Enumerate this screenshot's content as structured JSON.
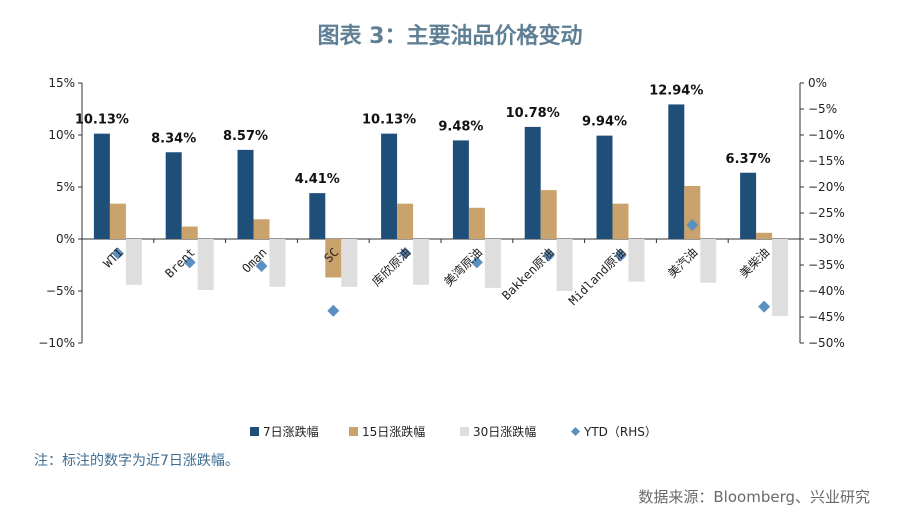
{
  "title": "图表 3：主要油品价格变动",
  "note": "注：标注的数字为近7日涨跌幅。",
  "source": "数据来源：Bloomberg、兴业研究",
  "chart_data": {
    "type": "bar",
    "categories": [
      "WTI",
      "Brent",
      "Oman",
      "SC",
      "库欣原油",
      "美湾原油",
      "Bakken原油",
      "Midland原油",
      "美汽油",
      "美柴油"
    ],
    "series": [
      {
        "name": "7日涨跌幅",
        "axis": "left",
        "kind": "bar",
        "color": "#1f4e79",
        "values": [
          10.13,
          8.34,
          8.57,
          4.41,
          10.13,
          9.48,
          10.78,
          9.94,
          12.94,
          6.37
        ]
      },
      {
        "name": "15日涨跌幅",
        "axis": "left",
        "kind": "bar",
        "color": "#c9a36b",
        "values": [
          3.4,
          1.2,
          1.9,
          -3.7,
          3.4,
          3.0,
          4.7,
          3.4,
          5.1,
          0.6
        ]
      },
      {
        "name": "30日涨跌幅",
        "axis": "left",
        "kind": "bar",
        "color": "#dedede",
        "values": [
          -4.4,
          -4.9,
          -4.6,
          -4.6,
          -4.4,
          -4.7,
          -5.0,
          -4.1,
          -4.2,
          -7.4
        ]
      },
      {
        "name": "YTD（RHS）",
        "axis": "right",
        "kind": "marker",
        "color": "#5b8fbf",
        "values": [
          -32.8,
          -34.5,
          -35.2,
          -43.8,
          -32.7,
          -34.5,
          -33.2,
          -33.2,
          -27.3,
          -43.0
        ]
      }
    ],
    "data_labels": [
      "10.13%",
      "8.34%",
      "8.57%",
      "4.41%",
      "10.13%",
      "9.48%",
      "10.78%",
      "9.94%",
      "12.94%",
      "6.37%"
    ],
    "y_left": {
      "lim": [
        -10,
        15
      ],
      "ticks": [
        "15%",
        "10%",
        "5%",
        "0%",
        "−5%",
        "−10%"
      ],
      "tick_values": [
        15,
        10,
        5,
        0,
        -5,
        -10
      ]
    },
    "y_right": {
      "lim": [
        -50,
        0
      ],
      "ticks": [
        "0%",
        "−5%",
        "−10%",
        "−15%",
        "−20%",
        "−25%",
        "−30%",
        "−35%",
        "−40%",
        "−45%",
        "−50%"
      ],
      "tick_values": [
        0,
        -5,
        -10,
        -15,
        -20,
        -25,
        -30,
        -35,
        -40,
        -45,
        -50
      ]
    },
    "grid": false,
    "legend": "bottom",
    "legend_labels": [
      "7日涨跌幅",
      "15日涨跌幅",
      "30日涨跌幅",
      "YTD（RHS）"
    ]
  }
}
